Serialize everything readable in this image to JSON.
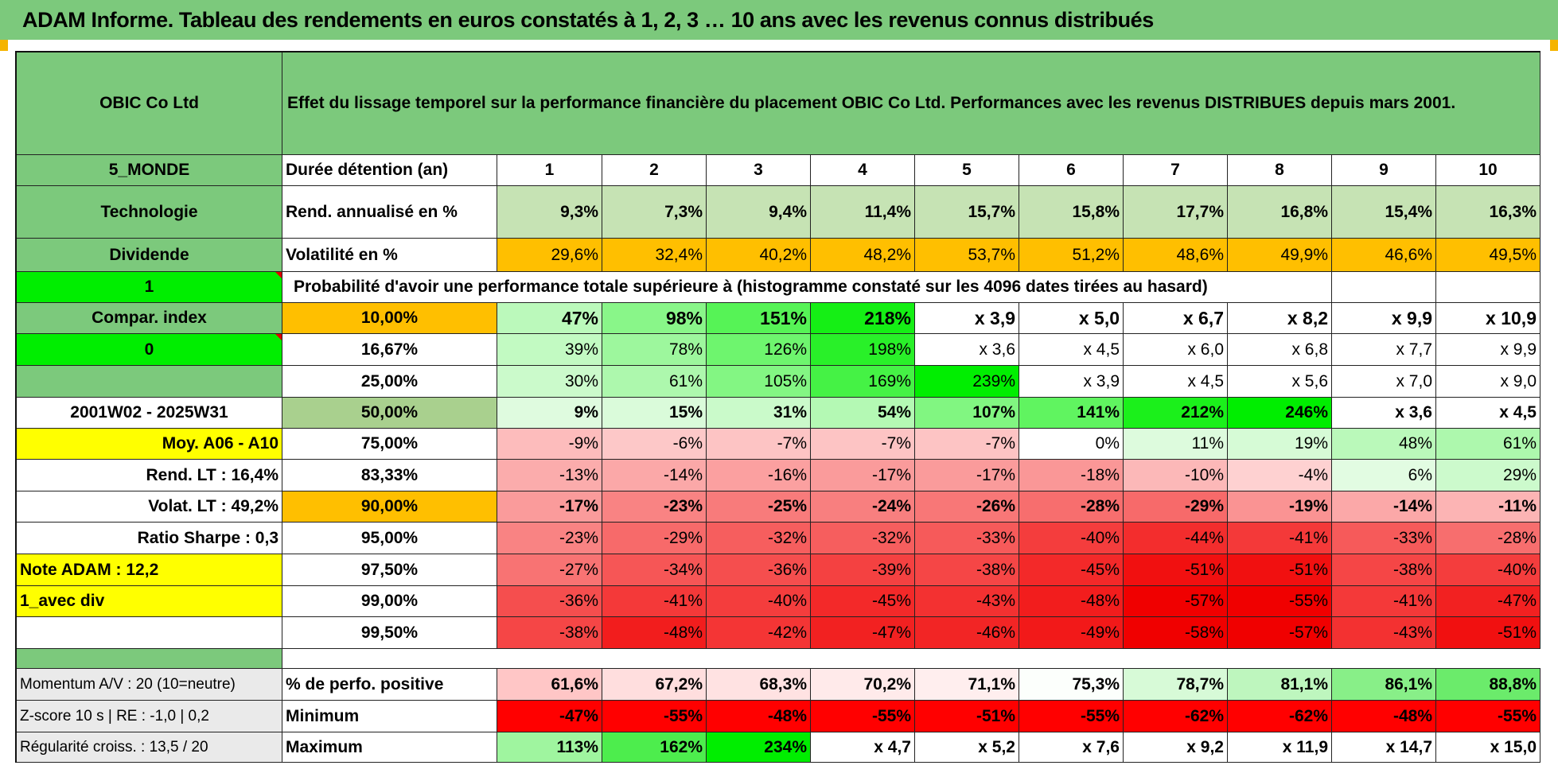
{
  "banner": "ADAM Informe. Tableau des rendements en euros constatés à 1, 2, 3 … 10 ans avec les revenus connus distribués",
  "left": {
    "company": "OBIC Co Ltd",
    "region": "5_MONDE",
    "sector": "Technologie",
    "type": "Dividende",
    "flag1": "1",
    "compar": "Compar. index",
    "flag2": "0",
    "period": "2001W02 - 2025W31",
    "moy": "Moy. A06 - A10",
    "rend_lt": "Rend. LT :   16,4%",
    "volat_lt": "Volat. LT :   49,2%",
    "sharpe": "Ratio Sharpe :    0,3",
    "note": "Note ADAM : 12,2",
    "div": "1_avec div",
    "momentum": "Momentum A/V : 20 (10=neutre)",
    "zscore": "Z-score 10 s | RE : -1,0 | 0,2",
    "regularite": "Régularité croiss. : 13,5 / 20"
  },
  "title": "Effet du lissage temporel sur la performance financière du placement OBIC Co Ltd. Performances avec les revenus DISTRIBUES depuis mars 2001.",
  "labels": {
    "duree": "Durée détention (an)",
    "rend": "Rend. annualisé en %",
    "vol": "Volatilité en %",
    "proba": "Probabilité d'avoir une performance totale supérieure à (histogramme constaté sur les 4096 dates tirées au hasard)",
    "pct_pos": "% de perfo. positive",
    "min": "Minimum",
    "max": "Maximum"
  },
  "years": [
    "1",
    "2",
    "3",
    "4",
    "5",
    "6",
    "7",
    "8",
    "9",
    "10"
  ],
  "rend": [
    "9,3%",
    "7,3%",
    "9,4%",
    "11,4%",
    "15,7%",
    "15,8%",
    "17,7%",
    "16,8%",
    "15,4%",
    "16,3%"
  ],
  "vol": [
    "29,6%",
    "32,4%",
    "40,2%",
    "48,2%",
    "53,7%",
    "51,2%",
    "48,6%",
    "49,9%",
    "46,6%",
    "49,5%"
  ],
  "prob_rows": [
    {
      "p": "10,00%",
      "v": [
        "47%",
        "98%",
        "151%",
        "218%",
        "x 3,9",
        "x 5,0",
        "x 6,7",
        "x 8,2",
        "x 9,9",
        "x 10,9"
      ]
    },
    {
      "p": "16,67%",
      "v": [
        "39%",
        "78%",
        "126%",
        "198%",
        "x 3,6",
        "x 4,5",
        "x 6,0",
        "x 6,8",
        "x 7,7",
        "x 9,9"
      ]
    },
    {
      "p": "25,00%",
      "v": [
        "30%",
        "61%",
        "105%",
        "169%",
        "239%",
        "x 3,9",
        "x 4,5",
        "x 5,6",
        "x 7,0",
        "x 9,0"
      ]
    },
    {
      "p": "50,00%",
      "v": [
        "9%",
        "15%",
        "31%",
        "54%",
        "107%",
        "141%",
        "212%",
        "246%",
        "x 3,6",
        "x 4,5"
      ]
    },
    {
      "p": "75,00%",
      "v": [
        "-9%",
        "-6%",
        "-7%",
        "-7%",
        "-7%",
        "0%",
        "11%",
        "19%",
        "48%",
        "61%"
      ]
    },
    {
      "p": "83,33%",
      "v": [
        "-13%",
        "-14%",
        "-16%",
        "-17%",
        "-17%",
        "-18%",
        "-10%",
        "-4%",
        "6%",
        "29%"
      ]
    },
    {
      "p": "90,00%",
      "v": [
        "-17%",
        "-23%",
        "-25%",
        "-24%",
        "-26%",
        "-28%",
        "-29%",
        "-19%",
        "-14%",
        "-11%"
      ]
    },
    {
      "p": "95,00%",
      "v": [
        "-23%",
        "-29%",
        "-32%",
        "-32%",
        "-33%",
        "-40%",
        "-44%",
        "-41%",
        "-33%",
        "-28%"
      ]
    },
    {
      "p": "97,50%",
      "v": [
        "-27%",
        "-34%",
        "-36%",
        "-39%",
        "-38%",
        "-45%",
        "-51%",
        "-51%",
        "-38%",
        "-40%"
      ]
    },
    {
      "p": "99,00%",
      "v": [
        "-36%",
        "-41%",
        "-40%",
        "-45%",
        "-43%",
        "-48%",
        "-57%",
        "-55%",
        "-41%",
        "-47%"
      ]
    },
    {
      "p": "99,50%",
      "v": [
        "-38%",
        "-48%",
        "-42%",
        "-47%",
        "-46%",
        "-49%",
        "-58%",
        "-57%",
        "-43%",
        "-51%"
      ]
    }
  ],
  "pct_pos": [
    "61,6%",
    "67,2%",
    "68,3%",
    "70,2%",
    "71,1%",
    "75,3%",
    "78,7%",
    "81,1%",
    "86,1%",
    "88,8%"
  ],
  "minimum": [
    "-47%",
    "-55%",
    "-48%",
    "-55%",
    "-51%",
    "-55%",
    "-62%",
    "-62%",
    "-48%",
    "-55%"
  ],
  "maximum": [
    "113%",
    "162%",
    "234%",
    "x 4,7",
    "x 5,2",
    "x 7,6",
    "x 9,2",
    "x 11,9",
    "x 14,7",
    "x 15,0"
  ],
  "colors": {
    "header_green": "#7cc97c",
    "light_green": "#c6e3b4",
    "bright_green": "#00ee00",
    "orange": "#ffbf00",
    "yellow": "#ffff00",
    "red_text": "#e00000"
  }
}
